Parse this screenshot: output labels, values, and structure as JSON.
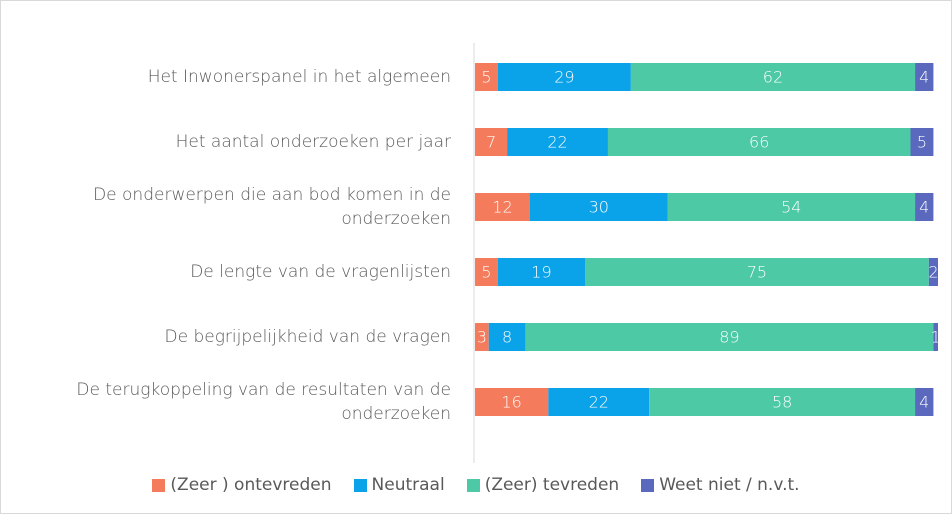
{
  "chart_data": {
    "type": "stacked_bar_horizontal",
    "categories": [
      "Het Inwonerspanel in het algemeen",
      "Het aantal onderzoeken per jaar",
      "De onderwerpen die aan bod komen in de onderzoeken",
      "De lengte van de vragenlijsten",
      "De begrijpelijkheid van de vragen",
      "De terugkoppeling van de resultaten van de onderzoeken"
    ],
    "series": [
      {
        "name": "(Zeer ) ontevreden",
        "color": "#f47b5c",
        "values": [
          5,
          7,
          12,
          5,
          3,
          16
        ]
      },
      {
        "name": "Neutraal",
        "color": "#0aa2e8",
        "values": [
          29,
          22,
          30,
          19,
          8,
          22
        ]
      },
      {
        "name": "(Zeer) tevreden",
        "color": "#4ec9a5",
        "values": [
          62,
          66,
          54,
          75,
          89,
          58
        ]
      },
      {
        "name": "Weet niet / n.v.t.",
        "color": "#5a68bd",
        "values": [
          4,
          5,
          4,
          2,
          1,
          4
        ]
      }
    ],
    "xlim": [
      0,
      101
    ],
    "legend": "bottom"
  }
}
